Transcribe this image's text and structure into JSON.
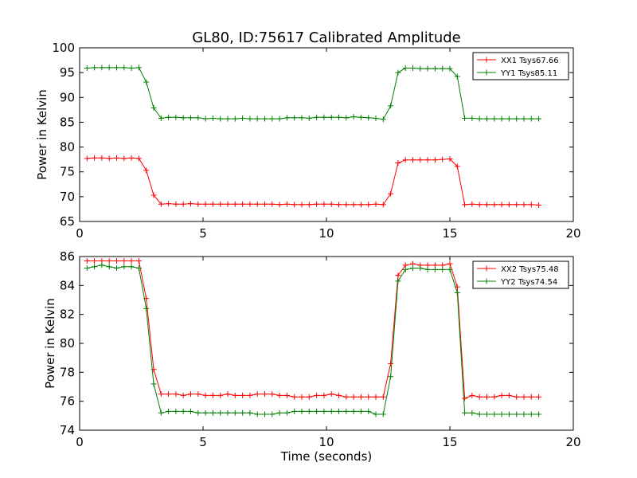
{
  "figure": {
    "title": "GL80, ID:75617 Calibrated Amplitude",
    "xlabel": "Time (seconds)"
  },
  "chart_data": [
    {
      "type": "line",
      "ylabel": "Power in Kelvin",
      "xlim": [
        0,
        20
      ],
      "ylim": [
        65,
        100
      ],
      "xticks": [
        0,
        5,
        10,
        15,
        20
      ],
      "yticks": [
        65,
        70,
        75,
        80,
        85,
        90,
        95,
        100
      ],
      "grid": false,
      "legend": "top-right",
      "series": [
        {
          "name": "XX1 Tsys67.66",
          "color": "#ff0000",
          "x": [
            0.3,
            0.6,
            0.9,
            1.2,
            1.5,
            1.8,
            2.1,
            2.4,
            2.7,
            3.0,
            3.3,
            3.6,
            3.9,
            4.2,
            4.5,
            4.8,
            5.1,
            5.4,
            5.7,
            6.0,
            6.3,
            6.6,
            6.9,
            7.2,
            7.5,
            7.8,
            8.1,
            8.4,
            8.7,
            9.0,
            9.3,
            9.6,
            9.9,
            10.2,
            10.5,
            10.8,
            11.1,
            11.4,
            11.7,
            12.0,
            12.3,
            12.6,
            12.9,
            13.2,
            13.5,
            13.8,
            14.1,
            14.4,
            14.7,
            15.0,
            15.3,
            15.6,
            15.9,
            16.2,
            16.5,
            16.8,
            17.1,
            17.4,
            17.7,
            18.0,
            18.3,
            18.6
          ],
          "y": [
            77.7,
            77.8,
            77.8,
            77.7,
            77.8,
            77.7,
            77.8,
            77.7,
            75.3,
            70.3,
            68.5,
            68.6,
            68.5,
            68.5,
            68.6,
            68.5,
            68.5,
            68.5,
            68.5,
            68.5,
            68.5,
            68.5,
            68.5,
            68.5,
            68.5,
            68.5,
            68.4,
            68.5,
            68.4,
            68.4,
            68.4,
            68.5,
            68.5,
            68.5,
            68.4,
            68.4,
            68.4,
            68.4,
            68.4,
            68.5,
            68.4,
            70.6,
            76.8,
            77.4,
            77.4,
            77.4,
            77.4,
            77.4,
            77.5,
            77.6,
            76.1,
            68.4,
            68.5,
            68.4,
            68.4,
            68.4,
            68.4,
            68.4,
            68.4,
            68.4,
            68.4,
            68.3
          ]
        },
        {
          "name": "YY1 Tsys85.11",
          "color": "#008000",
          "x": [
            0.3,
            0.6,
            0.9,
            1.2,
            1.5,
            1.8,
            2.1,
            2.4,
            2.7,
            3.0,
            3.3,
            3.6,
            3.9,
            4.2,
            4.5,
            4.8,
            5.1,
            5.4,
            5.7,
            6.0,
            6.3,
            6.6,
            6.9,
            7.2,
            7.5,
            7.8,
            8.1,
            8.4,
            8.7,
            9.0,
            9.3,
            9.6,
            9.9,
            10.2,
            10.5,
            10.8,
            11.1,
            11.4,
            11.7,
            12.0,
            12.3,
            12.6,
            12.9,
            13.2,
            13.5,
            13.8,
            14.1,
            14.4,
            14.7,
            15.0,
            15.3,
            15.6,
            15.9,
            16.2,
            16.5,
            16.8,
            17.1,
            17.4,
            17.7,
            18.0,
            18.3,
            18.6
          ],
          "y": [
            95.9,
            96.0,
            96.0,
            96.0,
            96.0,
            96.0,
            95.9,
            96.0,
            93.1,
            87.9,
            85.8,
            86.0,
            86.0,
            85.9,
            85.9,
            85.9,
            85.7,
            85.8,
            85.7,
            85.7,
            85.7,
            85.8,
            85.7,
            85.7,
            85.7,
            85.7,
            85.7,
            85.9,
            85.9,
            85.9,
            85.8,
            86.0,
            86.0,
            86.0,
            86.0,
            85.9,
            86.1,
            86.0,
            85.9,
            85.8,
            85.6,
            88.3,
            95.0,
            95.9,
            95.9,
            95.8,
            95.8,
            95.8,
            95.8,
            95.8,
            94.2,
            85.8,
            85.8,
            85.7,
            85.7,
            85.7,
            85.7,
            85.7,
            85.7,
            85.7,
            85.7,
            85.7
          ]
        }
      ]
    },
    {
      "type": "line",
      "ylabel": "Power in Kelvin",
      "xlim": [
        0,
        20
      ],
      "ylim": [
        74,
        86
      ],
      "xticks": [
        0,
        5,
        10,
        15,
        20
      ],
      "yticks": [
        74,
        76,
        78,
        80,
        82,
        84,
        86
      ],
      "grid": false,
      "legend": "top-right",
      "series": [
        {
          "name": "XX2 Tsys75.48",
          "color": "#ff0000",
          "x": [
            0.3,
            0.6,
            0.9,
            1.2,
            1.5,
            1.8,
            2.1,
            2.4,
            2.7,
            3.0,
            3.3,
            3.6,
            3.9,
            4.2,
            4.5,
            4.8,
            5.1,
            5.4,
            5.7,
            6.0,
            6.3,
            6.6,
            6.9,
            7.2,
            7.5,
            7.8,
            8.1,
            8.4,
            8.7,
            9.0,
            9.3,
            9.6,
            9.9,
            10.2,
            10.5,
            10.8,
            11.1,
            11.4,
            11.7,
            12.0,
            12.3,
            12.6,
            12.9,
            13.2,
            13.5,
            13.8,
            14.1,
            14.4,
            14.7,
            15.0,
            15.3,
            15.6,
            15.9,
            16.2,
            16.5,
            16.8,
            17.1,
            17.4,
            17.7,
            18.0,
            18.3,
            18.6
          ],
          "y": [
            85.7,
            85.7,
            85.7,
            85.7,
            85.7,
            85.7,
            85.7,
            85.7,
            83.1,
            78.2,
            76.5,
            76.5,
            76.5,
            76.4,
            76.5,
            76.5,
            76.4,
            76.4,
            76.4,
            76.5,
            76.4,
            76.4,
            76.4,
            76.5,
            76.5,
            76.5,
            76.4,
            76.4,
            76.3,
            76.3,
            76.3,
            76.4,
            76.4,
            76.5,
            76.4,
            76.3,
            76.3,
            76.3,
            76.3,
            76.3,
            76.3,
            78.6,
            84.7,
            85.4,
            85.5,
            85.4,
            85.4,
            85.4,
            85.4,
            85.5,
            83.9,
            76.2,
            76.4,
            76.3,
            76.3,
            76.3,
            76.4,
            76.4,
            76.3,
            76.3,
            76.3,
            76.3
          ]
        },
        {
          "name": "YY2 Tsys74.54",
          "color": "#008000",
          "x": [
            0.3,
            0.6,
            0.9,
            1.2,
            1.5,
            1.8,
            2.1,
            2.4,
            2.7,
            3.0,
            3.3,
            3.6,
            3.9,
            4.2,
            4.5,
            4.8,
            5.1,
            5.4,
            5.7,
            6.0,
            6.3,
            6.6,
            6.9,
            7.2,
            7.5,
            7.8,
            8.1,
            8.4,
            8.7,
            9.0,
            9.3,
            9.6,
            9.9,
            10.2,
            10.5,
            10.8,
            11.1,
            11.4,
            11.7,
            12.0,
            12.3,
            12.6,
            12.9,
            13.2,
            13.5,
            13.8,
            14.1,
            14.4,
            14.7,
            15.0,
            15.3,
            15.6,
            15.9,
            16.2,
            16.5,
            16.8,
            17.1,
            17.4,
            17.7,
            18.0,
            18.3,
            18.6
          ],
          "y": [
            85.2,
            85.3,
            85.4,
            85.3,
            85.2,
            85.3,
            85.3,
            85.2,
            82.4,
            77.2,
            75.2,
            75.3,
            75.3,
            75.3,
            75.3,
            75.2,
            75.2,
            75.2,
            75.2,
            75.2,
            75.2,
            75.2,
            75.2,
            75.1,
            75.1,
            75.1,
            75.2,
            75.2,
            75.3,
            75.3,
            75.3,
            75.3,
            75.3,
            75.3,
            75.3,
            75.3,
            75.3,
            75.3,
            75.3,
            75.1,
            75.1,
            77.7,
            84.3,
            85.1,
            85.2,
            85.2,
            85.1,
            85.1,
            85.1,
            85.1,
            83.5,
            75.2,
            75.2,
            75.1,
            75.1,
            75.1,
            75.1,
            75.1,
            75.1,
            75.1,
            75.1,
            75.1
          ]
        }
      ]
    }
  ]
}
